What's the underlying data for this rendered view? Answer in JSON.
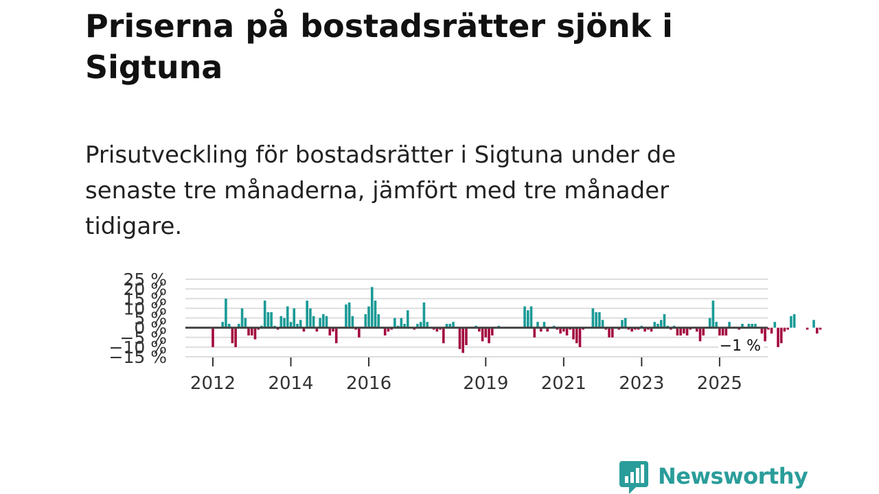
{
  "title": "Priserna på bostadsrätter sjönk i Sigtuna",
  "subtitle": "Prisutveckling för bostadsrätter i Sigtuna under de senaste tre månaderna, jämfört med tre månader tidigare.",
  "brand": {
    "name": "Newsworthy",
    "color": "#2a9d9a"
  },
  "colors": {
    "positive": "#1a9a96",
    "negative": "#a3093f",
    "grid": "#dddddd",
    "zero": "#444444"
  },
  "chart_data": {
    "type": "bar",
    "title": "",
    "xlabel": "",
    "ylabel": "",
    "ylim": [
      -15,
      25
    ],
    "y_ticks": [
      {
        "value": 25,
        "label": "25 %"
      },
      {
        "value": 20,
        "label": "20 %"
      },
      {
        "value": 15,
        "label": "15 %"
      },
      {
        "value": 10,
        "label": "10 %"
      },
      {
        "value": 5,
        "label": "5 %"
      },
      {
        "value": 0,
        "label": "0 %"
      },
      {
        "value": -5,
        "label": "−5 %"
      },
      {
        "value": -10,
        "label": "−10 %"
      },
      {
        "value": -15,
        "label": "−15 %"
      }
    ],
    "x_ticks": [
      {
        "value": 2012,
        "label": "2012"
      },
      {
        "value": 2014,
        "label": "2014"
      },
      {
        "value": 2016,
        "label": "2016"
      },
      {
        "value": 2019,
        "label": "2019"
      },
      {
        "value": 2021,
        "label": "2021"
      },
      {
        "value": 2023,
        "label": "2023"
      },
      {
        "value": 2025,
        "label": "2025"
      }
    ],
    "start": 2012,
    "step_months": 1,
    "values": [
      -10,
      0,
      0,
      3,
      15,
      2,
      -8,
      -10,
      2,
      10,
      5,
      -4,
      -4,
      -6,
      -1,
      1,
      14,
      8,
      8,
      1,
      -1,
      6,
      5,
      11,
      3,
      10,
      2,
      4,
      -2,
      14,
      10,
      6,
      -2,
      5,
      7,
      6,
      -4,
      -2,
      -8,
      0,
      0,
      12,
      13,
      6,
      -1,
      -5,
      0,
      7,
      11,
      21,
      14,
      7,
      0,
      -4,
      -2,
      -1,
      5,
      1,
      5,
      2,
      9,
      0,
      -1,
      2,
      3,
      13,
      3,
      0,
      -1,
      -2,
      -1,
      -8,
      2,
      2,
      3,
      0,
      -11,
      -13,
      -9,
      0,
      0,
      1,
      -2,
      -7,
      -5,
      -8,
      -4,
      0,
      1,
      0,
      0,
      0,
      0,
      0,
      0,
      0,
      11,
      9,
      11,
      -5,
      3,
      -2,
      3,
      -2,
      0,
      1,
      -1,
      -3,
      -2,
      -4,
      -1,
      -6,
      -8,
      -10,
      -1,
      0,
      0,
      10,
      8,
      8,
      4,
      -1,
      -5,
      -5,
      0,
      -1,
      4,
      5,
      -1,
      -2,
      -1,
      -1,
      1,
      -2,
      -1,
      -2,
      3,
      2,
      4,
      7,
      1,
      -1,
      1,
      -4,
      -4,
      -3,
      -4,
      -1,
      0,
      -2,
      -7,
      -4,
      0,
      5,
      14,
      3,
      -6,
      -10,
      -8,
      3,
      0,
      0,
      -1,
      2,
      0,
      2,
      2,
      2,
      0,
      -3,
      -7,
      -1,
      -3,
      3,
      -10,
      -8,
      -2,
      -1,
      6,
      7,
      0,
      0,
      0,
      -1,
      0,
      4,
      -3,
      -1
    ],
    "last_value_label": "−1 %"
  }
}
